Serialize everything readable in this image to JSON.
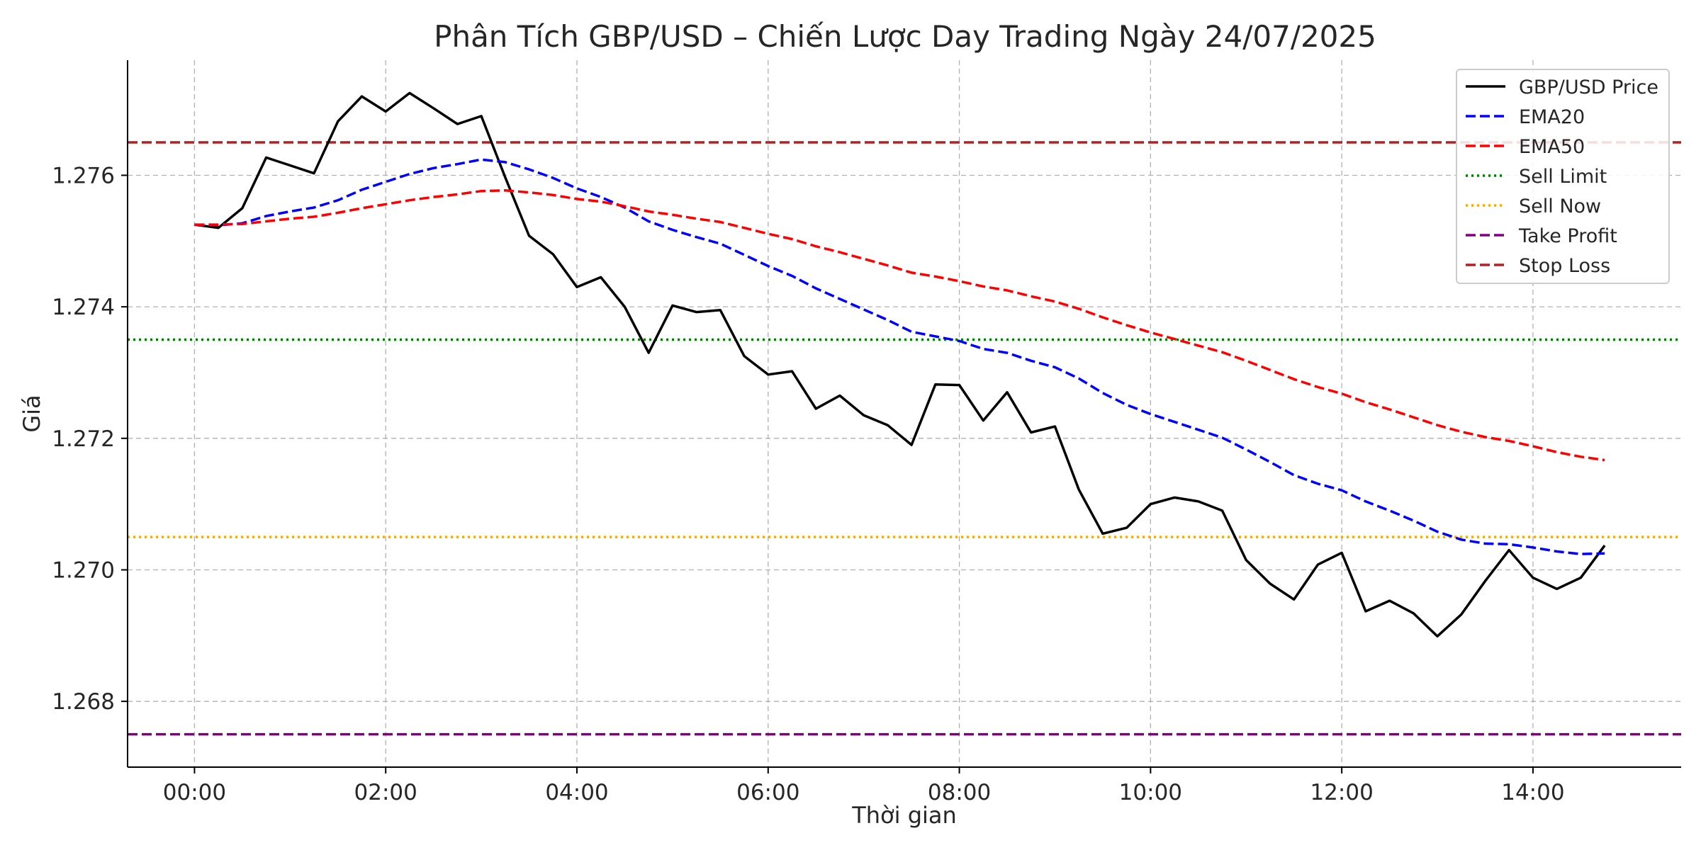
{
  "chart_data": {
    "type": "line",
    "title": "Phân Tích GBP/USD – Chiến Lược Day Trading Ngày 24/07/2025",
    "xlabel": "Thời gian",
    "ylabel": "Giá",
    "x_ticks": [
      "00:00",
      "02:00",
      "04:00",
      "06:00",
      "08:00",
      "10:00",
      "12:00",
      "14:00"
    ],
    "x_tick_hours": [
      0,
      2,
      4,
      6,
      8,
      10,
      12,
      14
    ],
    "y_ticks": [
      "1.268",
      "1.270",
      "1.272",
      "1.274",
      "1.276"
    ],
    "y_tick_values": [
      1.268,
      1.27,
      1.272,
      1.274,
      1.276
    ],
    "xlim": [
      -0.7,
      15.55
    ],
    "ylim": [
      1.267,
      1.27775
    ],
    "grid": true,
    "legend_position": "top-right",
    "x_hours_step": 0.25,
    "series": [
      {
        "name": "GBP/USD Price",
        "color": "#000000",
        "style": "solid",
        "values": [
          1.27525,
          1.2752,
          1.2755,
          1.27627,
          1.27615,
          1.27603,
          1.27682,
          1.2772,
          1.27697,
          1.27725,
          1.27702,
          1.27678,
          1.2769,
          1.27597,
          1.27508,
          1.2748,
          1.2743,
          1.27445,
          1.274,
          1.2733,
          1.27402,
          1.27392,
          1.27395,
          1.27325,
          1.27297,
          1.27302,
          1.27245,
          1.27265,
          1.27235,
          1.2722,
          1.2719,
          1.27282,
          1.27281,
          1.27227,
          1.2727,
          1.27209,
          1.27218,
          1.27122,
          1.27055,
          1.27064,
          1.271,
          1.2711,
          1.27104,
          1.2709,
          1.27015,
          1.26979,
          1.26955,
          1.27008,
          1.27026,
          1.26937,
          1.26953,
          1.26934,
          1.26899,
          1.26932,
          1.26983,
          1.2703,
          1.26988,
          1.26971,
          1.26988,
          1.27037
        ]
      },
      {
        "name": "EMA20",
        "color": "#0000ff",
        "style": "dashed",
        "values": [
          1.27525,
          1.27524,
          1.27527,
          1.27538,
          1.27545,
          1.27551,
          1.27562,
          1.27578,
          1.2759,
          1.27602,
          1.27611,
          1.27617,
          1.27624,
          1.2762,
          1.27609,
          1.27596,
          1.2758,
          1.27567,
          1.27551,
          1.2753,
          1.27517,
          1.27506,
          1.27496,
          1.27479,
          1.27462,
          1.27447,
          1.27428,
          1.27412,
          1.27396,
          1.2738,
          1.27362,
          1.27355,
          1.27348,
          1.27336,
          1.2733,
          1.27318,
          1.27308,
          1.27291,
          1.27269,
          1.27251,
          1.27237,
          1.27225,
          1.27213,
          1.27201,
          1.27183,
          1.27164,
          1.27144,
          1.27131,
          1.27121,
          1.27104,
          1.2709,
          1.27075,
          1.27058,
          1.27046,
          1.2704,
          1.27039,
          1.27034,
          1.27028,
          1.27024,
          1.27025
        ]
      },
      {
        "name": "EMA50",
        "color": "#ff0000",
        "style": "dashed",
        "values": [
          1.27525,
          1.27525,
          1.27526,
          1.2753,
          1.27534,
          1.27537,
          1.27543,
          1.2755,
          1.27556,
          1.27562,
          1.27567,
          1.27571,
          1.27576,
          1.27577,
          1.27574,
          1.2757,
          1.27564,
          1.2756,
          1.27553,
          1.27545,
          1.2754,
          1.27534,
          1.27529,
          1.2752,
          1.27511,
          1.27503,
          1.27492,
          1.27483,
          1.27473,
          1.27463,
          1.27452,
          1.27446,
          1.27439,
          1.27431,
          1.27425,
          1.27416,
          1.27408,
          1.27397,
          1.27384,
          1.27372,
          1.27361,
          1.27351,
          1.27341,
          1.27331,
          1.27318,
          1.27304,
          1.2729,
          1.27278,
          1.27268,
          1.27255,
          1.27244,
          1.27232,
          1.2722,
          1.2721,
          1.27202,
          1.27196,
          1.27188,
          1.27179,
          1.27172,
          1.27167
        ]
      }
    ],
    "levels": [
      {
        "name": "Sell Limit",
        "value": 1.2735,
        "color": "#008000",
        "style": "dotted"
      },
      {
        "name": "Sell Now",
        "value": 1.2705,
        "color": "#ffa500",
        "style": "dotted"
      },
      {
        "name": "Take Profit",
        "value": 1.2675,
        "color": "#800080",
        "style": "dashed"
      },
      {
        "name": "Stop Loss",
        "value": 1.2765,
        "color": "#b22222",
        "style": "dashed"
      }
    ],
    "legend": [
      "GBP/USD Price",
      "EMA20",
      "EMA50",
      "Sell Limit",
      "Sell Now",
      "Take Profit",
      "Stop Loss"
    ]
  }
}
